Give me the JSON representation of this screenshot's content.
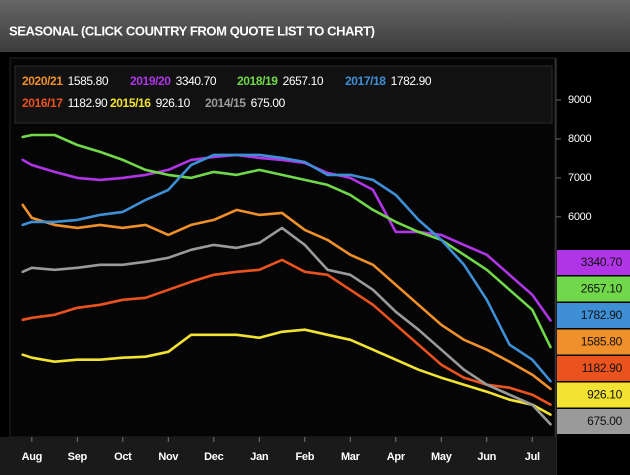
{
  "chart_data": {
    "type": "line",
    "title": "SEASONAL (CLICK COUNTRY FROM QUOTE LIST TO CHART)",
    "x": [
      -0.2,
      0,
      0.5,
      1,
      1.5,
      2,
      2.5,
      3,
      3.5,
      4,
      4.5,
      5,
      5.5,
      6,
      6.5,
      7,
      7.5,
      8,
      8.5,
      9,
      9.5,
      10,
      10.5,
      11,
      11.4
    ],
    "xlim": [
      -0.37,
      11.5
    ],
    "xticks": [
      {
        "value": 0,
        "label": "Aug"
      },
      {
        "value": 1,
        "label": "Sep"
      },
      {
        "value": 2,
        "label": "Oct"
      },
      {
        "value": 3,
        "label": "Nov"
      },
      {
        "value": 4,
        "label": "Dec"
      },
      {
        "value": 5,
        "label": "Jan"
      },
      {
        "value": 6,
        "label": "Feb"
      },
      {
        "value": 7,
        "label": "Mar"
      },
      {
        "value": 8,
        "label": "Apr"
      },
      {
        "value": 9,
        "label": "May"
      },
      {
        "value": 10,
        "label": "Jun"
      },
      {
        "value": 11,
        "label": "Jul"
      }
    ],
    "ylim": [
      350,
      9950
    ],
    "yticks": [
      6000,
      7000,
      8000,
      9000
    ],
    "series": [
      {
        "name": "2020/21",
        "color": "#f0902a",
        "last_label": "1585.80",
        "values": [
          6308,
          5974,
          5795,
          5718,
          5795,
          5718,
          5795,
          5538,
          5795,
          5923,
          6179,
          6051,
          6103,
          5667,
          5410,
          5026,
          4769,
          4256,
          3744,
          3231,
          2846,
          2590,
          2282,
          1949,
          1585.8
        ]
      },
      {
        "name": "2019/20",
        "color": "#b035e6",
        "last_label": "3340.70",
        "values": [
          7462,
          7333,
          7154,
          7000,
          6949,
          7000,
          7077,
          7205,
          7462,
          7538,
          7590,
          7513,
          7462,
          7385,
          7128,
          7000,
          6692,
          5615,
          5615,
          5538,
          5282,
          5026,
          4513,
          4000,
          3340.7
        ]
      },
      {
        "name": "2018/19",
        "color": "#70d84a",
        "last_label": "2657.10",
        "values": [
          8051,
          8103,
          8103,
          7846,
          7667,
          7462,
          7205,
          7077,
          7000,
          7154,
          7077,
          7205,
          7077,
          6949,
          6821,
          6564,
          6179,
          5872,
          5615,
          5410,
          5026,
          4641,
          4128,
          3615,
          2657.1
        ]
      },
      {
        "name": "2017/18",
        "color": "#3f8fd6",
        "last_label": "1782.90",
        "values": [
          5795,
          5872,
          5872,
          5923,
          6051,
          6128,
          6436,
          6692,
          7333,
          7590,
          7590,
          7590,
          7513,
          7410,
          7077,
          7077,
          6949,
          6564,
          5923,
          5410,
          4769,
          3872,
          2718,
          2333,
          1782.9
        ]
      },
      {
        "name": "2016/17",
        "color": "#ea521e",
        "last_label": "1182.90",
        "values": [
          3359,
          3410,
          3487,
          3667,
          3744,
          3872,
          3923,
          4128,
          4333,
          4513,
          4590,
          4641,
          4897,
          4590,
          4513,
          4128,
          3744,
          3231,
          2718,
          2205,
          1872,
          1692,
          1615,
          1436,
          1182.9
        ]
      },
      {
        "name": "2015/16",
        "color": "#f2e231",
        "last_label": "926.10",
        "values": [
          2462,
          2385,
          2282,
          2333,
          2333,
          2385,
          2410,
          2538,
          2974,
          2974,
          2974,
          2897,
          3051,
          3103,
          2974,
          2846,
          2590,
          2333,
          2077,
          1872,
          1692,
          1513,
          1308,
          1179,
          926.1
        ]
      },
      {
        "name": "2014/15",
        "color": "#9a9a9a",
        "last_label": "675.00",
        "values": [
          4590,
          4692,
          4641,
          4692,
          4769,
          4769,
          4846,
          4949,
          5154,
          5282,
          5205,
          5333,
          5718,
          5282,
          4641,
          4513,
          4128,
          3564,
          3103,
          2590,
          2077,
          1692,
          1436,
          1179,
          675
        ]
      }
    ]
  }
}
